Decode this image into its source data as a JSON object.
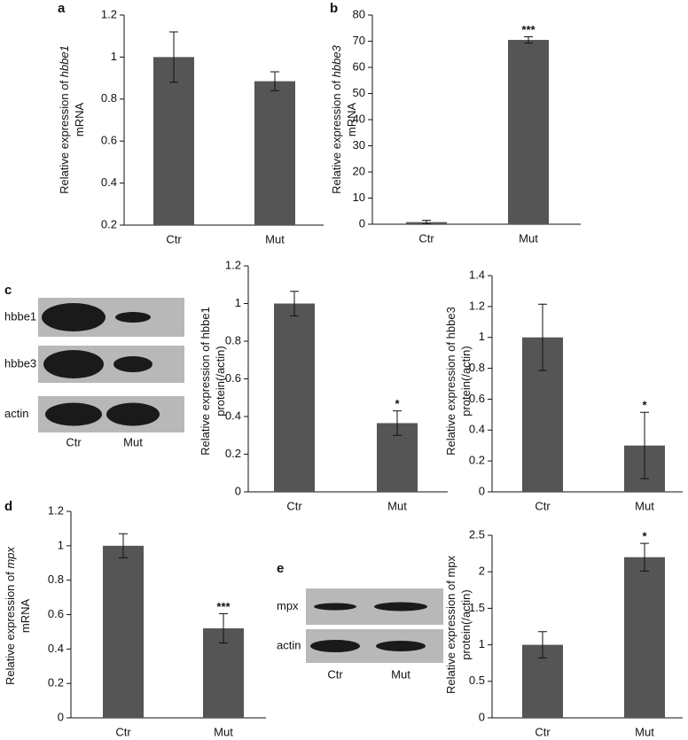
{
  "chart_data": [
    {
      "type": "bar",
      "panel": "a",
      "ylabel": [
        [
          {
            "text": "Relative expression of "
          },
          {
            "text": "hbbe1",
            "italic": true
          }
        ],
        [
          {
            "text": "mRNA"
          }
        ]
      ],
      "categories": [
        "Ctr",
        "Mut"
      ],
      "values": [
        1,
        0.885
      ],
      "errors": [
        0.12,
        0.045
      ],
      "stars": [
        null,
        null
      ],
      "color": "#555555",
      "ylim": [
        0.2,
        1.2
      ],
      "yticks": [
        0.2,
        0.4,
        0.6,
        0.8,
        1,
        1.2
      ]
    },
    {
      "type": "bar",
      "panel": "b",
      "ylabel": [
        [
          {
            "text": "Relative expression of "
          },
          {
            "text": "hbbe3",
            "italic": true
          }
        ],
        [
          {
            "text": "mRNA"
          }
        ]
      ],
      "categories": [
        "Ctr",
        "Mut"
      ],
      "values": [
        0.8,
        70.5
      ],
      "errors": [
        0.7,
        1.2
      ],
      "stars": [
        null,
        "***"
      ],
      "color": "#555555",
      "ylim": [
        0,
        80
      ],
      "yticks": [
        0,
        10,
        20,
        30,
        40,
        50,
        60,
        70,
        80
      ]
    },
    {
      "type": "bar",
      "ylabel": [
        [
          {
            "text": "Relative expression of hbbe1"
          }
        ],
        [
          {
            "text": "protein(/actin)"
          }
        ]
      ],
      "categories": [
        "Ctr",
        "Mut"
      ],
      "values": [
        1,
        0.365
      ],
      "errors": [
        0.065,
        0.065
      ],
      "stars": [
        null,
        "*"
      ],
      "color": "#555555",
      "ylim": [
        0,
        1.2
      ],
      "yticks": [
        0,
        0.2,
        0.4,
        0.6,
        0.8,
        1,
        1.2
      ]
    },
    {
      "type": "bar",
      "ylabel": [
        [
          {
            "text": "Relative expression of hbbe3"
          }
        ],
        [
          {
            "text": "protein(/actin)"
          }
        ]
      ],
      "categories": [
        "Ctr",
        "Mut"
      ],
      "values": [
        1,
        0.3
      ],
      "errors": [
        0.215,
        0.215
      ],
      "stars": [
        null,
        "*"
      ],
      "color": "#555555",
      "ylim": [
        0,
        1.4
      ],
      "yticks": [
        0,
        0.2,
        0.4,
        0.6,
        0.8,
        1,
        1.2,
        1.4
      ]
    },
    {
      "type": "bar",
      "panel": "d",
      "ylabel": [
        [
          {
            "text": "Relative expression of "
          },
          {
            "text": "mpx",
            "italic": true
          }
        ],
        [
          {
            "text": "mRNA"
          }
        ]
      ],
      "categories": [
        "Ctr",
        "Mut"
      ],
      "values": [
        1,
        0.52
      ],
      "errors": [
        0.07,
        0.085
      ],
      "stars": [
        null,
        "***"
      ],
      "color": "#555555",
      "ylim": [
        0,
        1.2
      ],
      "yticks": [
        0,
        0.2,
        0.4,
        0.6,
        0.8,
        1,
        1.2
      ]
    },
    {
      "type": "bar",
      "ylabel": [
        [
          {
            "text": "Relative expression of mpx"
          }
        ],
        [
          {
            "text": "protein(/actin)"
          }
        ]
      ],
      "categories": [
        "Ctr",
        "Mut"
      ],
      "values": [
        1,
        2.2
      ],
      "errors": [
        0.18,
        0.19
      ],
      "stars": [
        null,
        "*"
      ],
      "color": "#555555",
      "ylim": [
        0,
        2.5
      ],
      "yticks": [
        0,
        0.5,
        1,
        1.5,
        2,
        2.5
      ]
    }
  ],
  "blots": [
    {
      "panel": "c",
      "rows": [
        "hbbe1",
        "hbbe3",
        "actin"
      ],
      "lanes": [
        "Ctr",
        "Mut"
      ]
    },
    {
      "panel": "e",
      "rows": [
        "mpx",
        "actin"
      ],
      "lanes": [
        "Ctr",
        "Mut"
      ]
    }
  ]
}
